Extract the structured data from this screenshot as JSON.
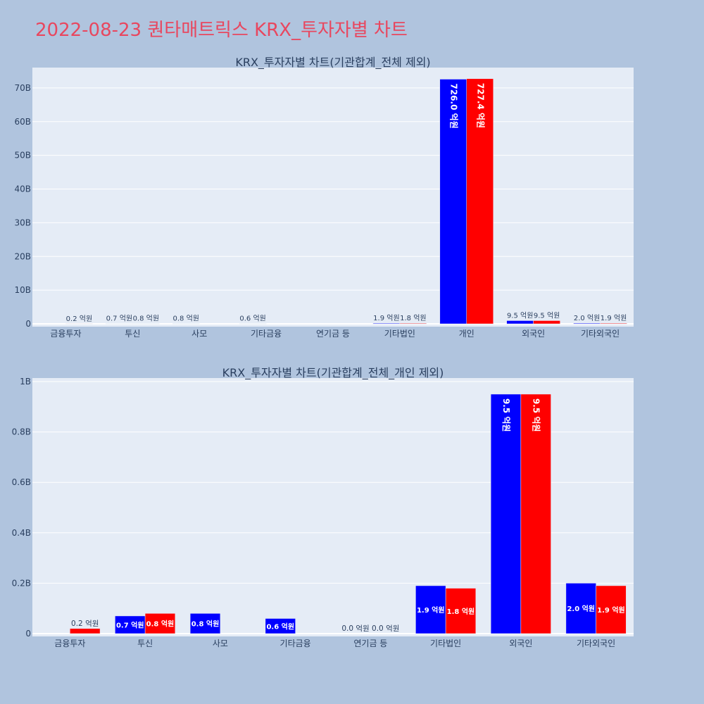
{
  "title": "2022-08-23 퀀타매트릭스 KRX_투자자별 차트",
  "colors": {
    "series1": "#0000ff",
    "series2": "#ff0000",
    "title": "#e8475f"
  },
  "chart_data": [
    {
      "type": "bar",
      "title": "KRX_투자자별 차트(기관합계_전체 제외)",
      "categories": [
        "금융투자",
        "투신",
        "사모",
        "기타금융",
        "연기금 등",
        "기타법인",
        "개인",
        "외국인",
        "기타외국인"
      ],
      "series": [
        {
          "values": [
            0,
            0.07,
            0.08,
            0.06,
            0,
            0.19,
            72.6,
            0.95,
            0.2
          ],
          "labels": [
            "",
            "0.7 억원",
            "0.8 억원",
            "0.6 억원",
            "",
            "1.9 억원",
            "726.0 억원",
            "9.5 억원",
            "2.0 억원"
          ]
        },
        {
          "values": [
            0.02,
            0.08,
            0,
            0,
            0,
            0.18,
            72.74,
            0.95,
            0.19
          ],
          "labels": [
            "0.2 억원",
            "0.8 억원",
            "",
            "",
            "",
            "1.8 억원",
            "727.4 억원",
            "9.5 억원",
            "1.9 억원"
          ]
        }
      ],
      "ylim": [
        0,
        75
      ],
      "yticks": [
        0,
        10,
        20,
        30,
        40,
        50,
        60,
        70
      ],
      "ytick_labels": [
        "0",
        "10B",
        "20B",
        "30B",
        "40B",
        "50B",
        "60B",
        "70B"
      ],
      "grid": true,
      "legend": false
    },
    {
      "type": "bar",
      "title": "KRX_투자자별 차트(기관합계_전체_개인 제외)",
      "categories": [
        "금융투자",
        "투신",
        "사모",
        "기타금융",
        "연기금 등",
        "기타법인",
        "외국인",
        "기타외국인"
      ],
      "series": [
        {
          "values": [
            0,
            0.07,
            0.08,
            0.06,
            0,
            0.19,
            0.95,
            0.2
          ],
          "labels": [
            "",
            "0.7 억원",
            "0.8 억원",
            "0.6 억원",
            "0.0 억원",
            "1.9 억원",
            "9.5 억원",
            "2.0 억원"
          ]
        },
        {
          "values": [
            0.02,
            0.08,
            0,
            0,
            0,
            0.18,
            0.95,
            0.19
          ],
          "labels": [
            "0.2 억원",
            "0.8 억원",
            "",
            "",
            "0.0 억원",
            "1.8 억원",
            "9.5 억원",
            "1.9 억원"
          ]
        }
      ],
      "ylim": [
        0,
        1.0
      ],
      "yticks": [
        0,
        0.2,
        0.4,
        0.6,
        0.8,
        1.0
      ],
      "ytick_labels": [
        "0",
        "0.2B",
        "0.4B",
        "0.6B",
        "0.8B",
        "1B"
      ],
      "grid": true,
      "legend": false
    }
  ]
}
